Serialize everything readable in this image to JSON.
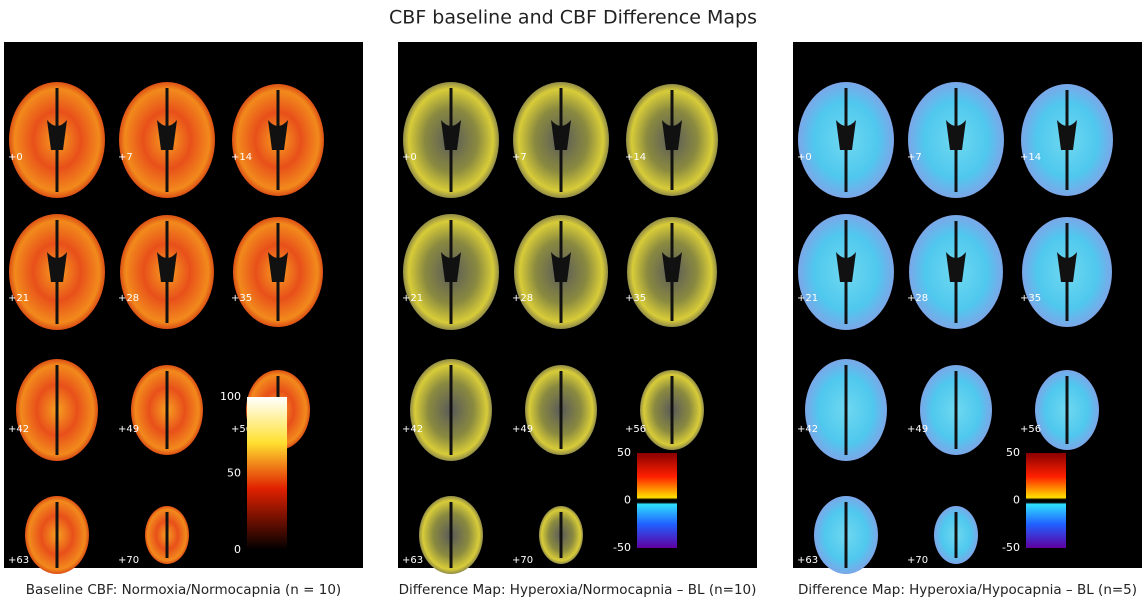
{
  "title": "CBF baseline and CBF Difference Maps",
  "panels": [
    {
      "caption": "Baseline CBF: Normoxia/Normocapnia (n = 10)",
      "slices": [
        "+0",
        "+7",
        "+14",
        "+21",
        "+28",
        "+35",
        "+42",
        "+49",
        "+56",
        "+63",
        "+70"
      ],
      "colorbar": {
        "ticks": [
          100,
          50,
          0
        ]
      }
    },
    {
      "caption": "Difference Map: Hyperoxia/Normocapnia – BL (n=10)",
      "slices": [
        "+0",
        "+7",
        "+14",
        "+21",
        "+28",
        "+35",
        "+42",
        "+49",
        "+56",
        "+63",
        "+70"
      ],
      "colorbar": {
        "ticks": [
          50,
          0,
          -50
        ]
      }
    },
    {
      "caption": "Difference Map:  Hyperoxia/Hypocapnia – BL (n=5)",
      "slices": [
        "+0",
        "+7",
        "+14",
        "+21",
        "+28",
        "+35",
        "+42",
        "+49",
        "+56",
        "+63",
        "+70"
      ],
      "colorbar": {
        "ticks": [
          50,
          0,
          -50
        ]
      }
    }
  ]
}
